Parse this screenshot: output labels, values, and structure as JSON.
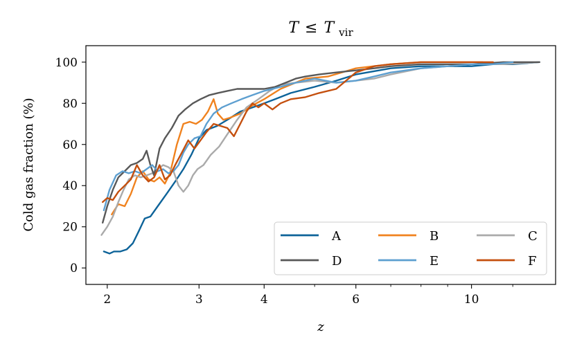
{
  "chart_data": {
    "type": "line",
    "title": "T ≤ T_vir",
    "title_parts": {
      "lhs": "T",
      "op": "≤",
      "rhs": "T",
      "sub": "vir"
    },
    "xlabel": "z",
    "ylabel": "Cold gas fraction (%)",
    "xscale": "log",
    "xlim": [
      1.82,
      14.5
    ],
    "ylim": [
      -8,
      108
    ],
    "xticks": [
      2,
      3,
      4,
      6,
      10
    ],
    "xtick_labels": [
      "2",
      "3",
      "4",
      "6",
      "10"
    ],
    "yticks": [
      0,
      20,
      40,
      60,
      80,
      100
    ],
    "ytick_labels": [
      "0",
      "20",
      "40",
      "60",
      "80",
      "100"
    ],
    "legend_position": "lower-right",
    "legend_columns": 3,
    "series": [
      {
        "name": "A",
        "color": "#0d6399",
        "x": [
          1.97,
          2.02,
          2.06,
          2.12,
          2.18,
          2.24,
          2.3,
          2.36,
          2.42,
          2.5,
          2.6,
          2.7,
          2.8,
          2.9,
          3.0,
          3.1,
          3.25,
          3.4,
          3.6,
          3.8,
          4.0,
          4.2,
          4.5,
          5.0,
          5.5,
          6.0,
          7.0,
          8.0,
          9.0,
          10.0,
          11.0,
          12.0,
          13.5
        ],
        "y": [
          8,
          7,
          8,
          8,
          9,
          12,
          18,
          24,
          25,
          30,
          36,
          42,
          48,
          55,
          63,
          67,
          69,
          72,
          76,
          78,
          80,
          82,
          85,
          88,
          91,
          94,
          97,
          98,
          98,
          98,
          99,
          99,
          100
        ]
      },
      {
        "name": "B",
        "color": "#f0821e",
        "x": [
          2.04,
          2.1,
          2.16,
          2.22,
          2.28,
          2.34,
          2.4,
          2.46,
          2.52,
          2.58,
          2.64,
          2.72,
          2.8,
          2.88,
          2.96,
          3.04,
          3.12,
          3.2,
          3.26,
          3.34,
          3.44,
          3.6,
          3.8,
          4.0,
          4.3,
          4.8,
          5.3,
          6.0,
          7.0,
          8.0,
          9.0,
          10.5
        ],
        "y": [
          26,
          31,
          30,
          36,
          44,
          47,
          43,
          42,
          44,
          41,
          46,
          60,
          70,
          71,
          70,
          72,
          76,
          82,
          75,
          72,
          73,
          75,
          79,
          82,
          87,
          92,
          93,
          97,
          99,
          100,
          100,
          100
        ]
      },
      {
        "name": "C",
        "color": "#aaaaaa",
        "x": [
          1.95,
          2.0,
          2.05,
          2.1,
          2.15,
          2.2,
          2.26,
          2.32,
          2.38,
          2.44,
          2.5,
          2.56,
          2.62,
          2.68,
          2.74,
          2.8,
          2.86,
          2.92,
          2.98,
          3.06,
          3.16,
          3.28,
          3.4,
          3.55,
          3.7,
          3.9,
          4.1,
          4.3,
          4.6,
          5.0,
          5.5,
          6.0,
          6.5,
          7.0,
          8.0,
          9.0,
          10.0,
          11.5,
          13.5
        ],
        "y": [
          16,
          20,
          25,
          32,
          38,
          43,
          45,
          44,
          45,
          46,
          48,
          50,
          49,
          47,
          40,
          37,
          40,
          45,
          48,
          50,
          55,
          59,
          65,
          72,
          78,
          82,
          86,
          89,
          90,
          91,
          90,
          91,
          92,
          94,
          97,
          98,
          99,
          99,
          100
        ]
      },
      {
        "name": "D",
        "color": "#585858",
        "x": [
          1.96,
          2.0,
          2.05,
          2.1,
          2.16,
          2.22,
          2.28,
          2.34,
          2.38,
          2.42,
          2.46,
          2.52,
          2.58,
          2.66,
          2.74,
          2.82,
          2.92,
          3.02,
          3.14,
          3.26,
          3.4,
          3.55,
          3.7,
          3.85,
          4.0,
          4.2,
          4.4,
          4.6,
          4.8,
          5.1,
          5.5,
          6.0,
          6.5,
          7.0,
          8.0,
          9.0,
          10.0,
          11.5,
          13.5
        ],
        "y": [
          22,
          30,
          38,
          44,
          47,
          50,
          51,
          53,
          57,
          50,
          45,
          58,
          63,
          68,
          74,
          77,
          80,
          82,
          84,
          85,
          86,
          87,
          87,
          87,
          87,
          88,
          90,
          92,
          93,
          94,
          95,
          96,
          97,
          98,
          99,
          99,
          99,
          100,
          100
        ]
      },
      {
        "name": "E",
        "color": "#5d9fd0",
        "x": [
          1.97,
          2.02,
          2.08,
          2.14,
          2.2,
          2.26,
          2.32,
          2.38,
          2.44,
          2.5,
          2.56,
          2.62,
          2.68,
          2.74,
          2.8,
          2.86,
          2.94,
          3.02,
          3.1,
          3.2,
          3.32,
          3.46,
          3.62,
          3.8,
          4.0,
          4.3,
          4.6,
          5.0,
          5.5,
          6.0,
          6.5,
          7.0,
          8.0,
          9.0,
          10.0,
          11.0,
          12.0
        ],
        "y": [
          28,
          38,
          45,
          47,
          46,
          47,
          46,
          48,
          50,
          47,
          48,
          46,
          47,
          50,
          56,
          60,
          63,
          64,
          70,
          75,
          78,
          80,
          82,
          84,
          86,
          88,
          90,
          92,
          90,
          91,
          93,
          95,
          97,
          98,
          99,
          99,
          100
        ]
      },
      {
        "name": "F",
        "color": "#c44f0e",
        "x": [
          1.96,
          2.0,
          2.05,
          2.1,
          2.16,
          2.22,
          2.28,
          2.34,
          2.4,
          2.46,
          2.52,
          2.58,
          2.64,
          2.7,
          2.78,
          2.86,
          2.94,
          3.02,
          3.1,
          3.2,
          3.3,
          3.4,
          3.5,
          3.6,
          3.7,
          3.8,
          3.9,
          4.0,
          4.15,
          4.3,
          4.5,
          4.8,
          5.1,
          5.5,
          6.0,
          6.5,
          7.0,
          8.0,
          9.0,
          10.0,
          11.0
        ],
        "y": [
          32,
          34,
          33,
          37,
          40,
          43,
          50,
          45,
          42,
          44,
          50,
          43,
          45,
          50,
          56,
          62,
          58,
          62,
          66,
          70,
          69,
          68,
          64,
          70,
          76,
          80,
          78,
          80,
          77,
          80,
          82,
          83,
          85,
          87,
          95,
          98,
          99,
          100,
          100,
          100,
          100
        ]
      }
    ]
  }
}
